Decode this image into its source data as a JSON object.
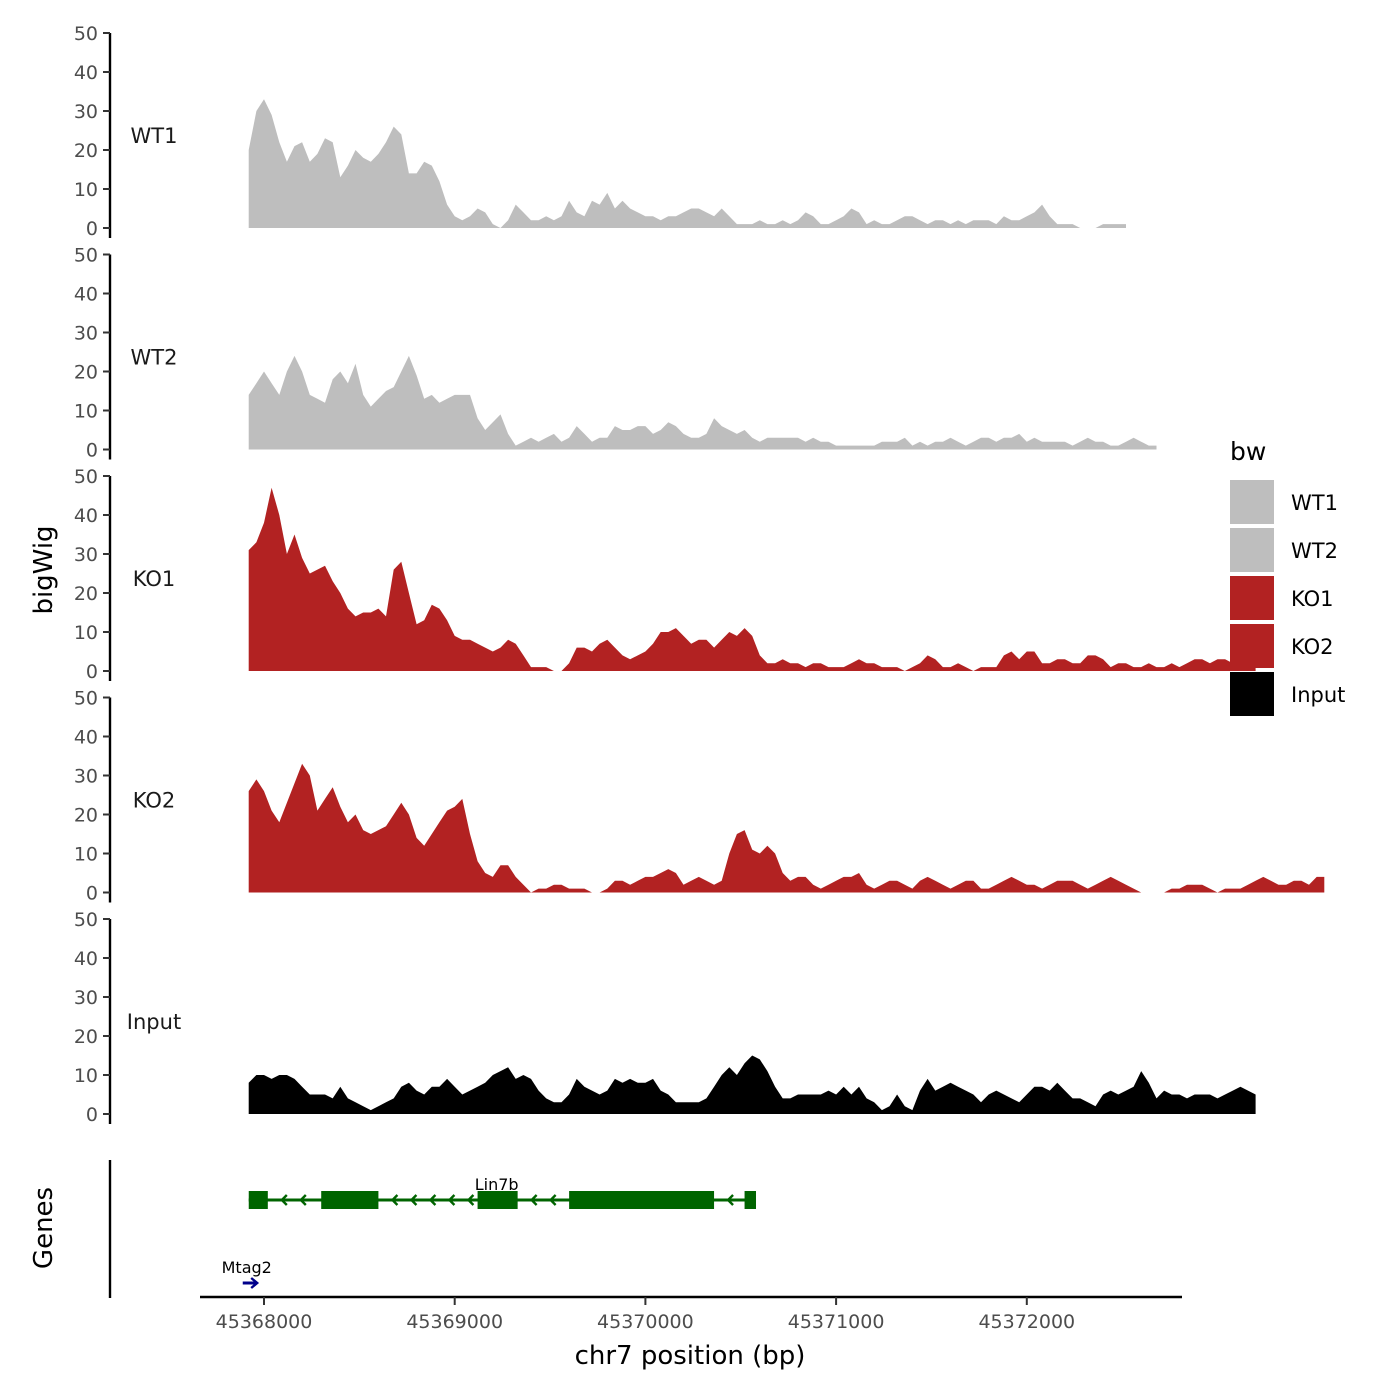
{
  "chart_data": {
    "type": "area",
    "title": "",
    "ylabel": "bigWig",
    "xlabel": "chr7 position (bp)",
    "xlim": [
      45367600,
      45372600
    ],
    "ylim": [
      0,
      50
    ],
    "y_ticks": [
      0,
      10,
      20,
      30,
      40,
      50
    ],
    "x_ticks": [
      45368000,
      45369000,
      45370000,
      45371000,
      45372000
    ],
    "x_tick_labels": [
      "45368000",
      "45369000",
      "45370000",
      "45371000",
      "45372000"
    ],
    "x_range_data": [
      45367920,
      45372560
    ],
    "gene_track_label": "Genes",
    "legend": {
      "title": "bw",
      "position": "right",
      "entries": [
        {
          "label": "WT1",
          "color": "#bebebe"
        },
        {
          "label": "WT2",
          "color": "#bebebe"
        },
        {
          "label": "KO1",
          "color": "#b22222"
        },
        {
          "label": "KO2",
          "color": "#b22222"
        },
        {
          "label": "Input",
          "color": "#000000"
        }
      ]
    },
    "series": [
      {
        "name": "WT1",
        "color": "#bebebe",
        "x_start": 45367920,
        "x_step": 40,
        "values": [
          20,
          30,
          33,
          29,
          22,
          17,
          21,
          22,
          17,
          19,
          23,
          22,
          13,
          16,
          20,
          18,
          17,
          19,
          22,
          26,
          24,
          14,
          14,
          17,
          16,
          12,
          6,
          3,
          2,
          3,
          5,
          4,
          1,
          0,
          2,
          6,
          4,
          2,
          2,
          3,
          2,
          3,
          7,
          4,
          3,
          7,
          6,
          9,
          5,
          7,
          5,
          4,
          3,
          3,
          2,
          3,
          3,
          4,
          5,
          5,
          4,
          3,
          5,
          3,
          1,
          1,
          1,
          2,
          1,
          1,
          2,
          1,
          2,
          4,
          3,
          1,
          1,
          2,
          3,
          5,
          4,
          1,
          2,
          1,
          1,
          2,
          3,
          3,
          2,
          1,
          2,
          2,
          1,
          2,
          1,
          2,
          2,
          2,
          1,
          3,
          2,
          2,
          3,
          4,
          6,
          3,
          1,
          1,
          1,
          0,
          0,
          0,
          1,
          1,
          1,
          1
        ]
      },
      {
        "name": "WT2",
        "color": "#bebebe",
        "x_start": 45367920,
        "x_step": 40,
        "values": [
          14,
          17,
          20,
          17,
          14,
          20,
          24,
          20,
          14,
          13,
          12,
          18,
          20,
          17,
          22,
          14,
          11,
          13,
          15,
          16,
          20,
          24,
          19,
          13,
          14,
          12,
          13,
          14,
          14,
          14,
          8,
          5,
          7,
          9,
          4,
          1,
          2,
          3,
          2,
          3,
          4,
          2,
          3,
          6,
          4,
          2,
          3,
          3,
          6,
          5,
          5,
          6,
          6,
          4,
          5,
          7,
          6,
          4,
          3,
          3,
          4,
          8,
          6,
          5,
          4,
          5,
          3,
          2,
          3,
          3,
          3,
          3,
          3,
          2,
          3,
          2,
          2,
          1,
          1,
          1,
          1,
          1,
          1,
          2,
          2,
          2,
          3,
          1,
          2,
          1,
          2,
          2,
          3,
          2,
          1,
          2,
          3,
          3,
          2,
          3,
          3,
          4,
          2,
          3,
          2,
          2,
          2,
          2,
          1,
          2,
          3,
          2,
          2,
          1,
          1,
          2,
          3,
          2,
          1,
          1
        ]
      },
      {
        "name": "KO1",
        "color": "#b22222",
        "x_start": 45367920,
        "x_step": 40,
        "values": [
          31,
          33,
          38,
          47,
          40,
          30,
          35,
          29,
          25,
          26,
          27,
          23,
          20,
          16,
          14,
          15,
          15,
          16,
          14,
          26,
          28,
          20,
          12,
          13,
          17,
          16,
          13,
          9,
          8,
          8,
          7,
          6,
          5,
          6,
          8,
          7,
          4,
          1,
          1,
          1,
          0,
          0,
          2,
          6,
          6,
          5,
          7,
          8,
          6,
          4,
          3,
          4,
          5,
          7,
          10,
          10,
          11,
          9,
          7,
          8,
          8,
          6,
          8,
          10,
          9,
          11,
          9,
          4,
          2,
          2,
          3,
          2,
          2,
          1,
          2,
          2,
          1,
          1,
          1,
          2,
          3,
          2,
          2,
          1,
          1,
          1,
          0,
          1,
          2,
          4,
          3,
          1,
          1,
          2,
          1,
          0,
          1,
          1,
          1,
          4,
          5,
          3,
          5,
          5,
          2,
          2,
          3,
          3,
          2,
          2,
          4,
          4,
          3,
          1,
          2,
          2,
          1,
          1,
          2,
          1,
          1,
          2,
          1,
          2,
          3,
          3,
          2,
          3,
          3,
          2,
          3,
          2,
          2
        ]
      },
      {
        "name": "KO2",
        "color": "#b22222",
        "x_start": 45367920,
        "x_step": 40,
        "values": [
          26,
          29,
          26,
          21,
          18,
          23,
          28,
          33,
          30,
          21,
          24,
          27,
          22,
          18,
          20,
          16,
          15,
          16,
          17,
          20,
          23,
          20,
          14,
          12,
          15,
          18,
          21,
          22,
          24,
          15,
          8,
          5,
          4,
          7,
          7,
          4,
          2,
          0,
          1,
          1,
          2,
          2,
          1,
          1,
          1,
          0,
          0,
          1,
          3,
          3,
          2,
          3,
          4,
          4,
          5,
          6,
          5,
          2,
          3,
          4,
          3,
          2,
          3,
          10,
          15,
          16,
          11,
          10,
          12,
          10,
          5,
          3,
          4,
          4,
          2,
          1,
          2,
          3,
          4,
          4,
          5,
          2,
          1,
          2,
          3,
          3,
          2,
          1,
          3,
          4,
          3,
          2,
          1,
          2,
          3,
          3,
          1,
          1,
          2,
          3,
          4,
          3,
          2,
          2,
          1,
          2,
          3,
          3,
          3,
          2,
          1,
          2,
          3,
          4,
          3,
          2,
          1,
          0,
          0,
          0,
          0,
          1,
          1,
          2,
          2,
          2,
          1,
          0,
          1,
          1,
          1,
          2,
          3,
          4,
          3,
          2,
          2,
          3,
          3,
          2,
          4,
          4
        ]
      },
      {
        "name": "Input",
        "color": "#000000",
        "x_start": 45367920,
        "x_step": 40,
        "values": [
          8,
          10,
          10,
          9,
          10,
          10,
          9,
          7,
          5,
          5,
          5,
          4,
          7,
          4,
          3,
          2,
          1,
          2,
          3,
          4,
          7,
          8,
          6,
          5,
          7,
          7,
          9,
          7,
          5,
          6,
          7,
          8,
          10,
          11,
          12,
          9,
          10,
          9,
          6,
          4,
          3,
          3,
          5,
          9,
          7,
          6,
          5,
          6,
          9,
          8,
          9,
          8,
          8,
          9,
          6,
          5,
          3,
          3,
          3,
          3,
          4,
          7,
          10,
          12,
          10,
          13,
          15,
          14,
          11,
          7,
          4,
          4,
          5,
          5,
          5,
          5,
          6,
          5,
          7,
          5,
          7,
          4,
          3,
          1,
          2,
          5,
          2,
          1,
          6,
          9,
          6,
          7,
          8,
          7,
          6,
          5,
          3,
          5,
          6,
          5,
          4,
          3,
          5,
          7,
          7,
          6,
          8,
          6,
          4,
          4,
          3,
          2,
          5,
          6,
          5,
          6,
          7,
          11,
          8,
          4,
          6,
          5,
          5,
          4,
          5,
          5,
          5,
          4,
          5,
          6,
          7,
          6,
          5
        ]
      }
    ],
    "genes": [
      {
        "name": "Lin7b",
        "start": 45367920,
        "end": 45370580,
        "strand": "-",
        "color": "#006400",
        "exons": [
          [
            45367920,
            45368020
          ],
          [
            45368300,
            45368600
          ],
          [
            45369120,
            45369330
          ],
          [
            45369600,
            45370360
          ],
          [
            45370520,
            45370580
          ]
        ]
      },
      {
        "name": "Mtag2",
        "start": 45367920,
        "end": 45367980,
        "strand": "+",
        "color": "#00008b",
        "exons": []
      }
    ]
  }
}
